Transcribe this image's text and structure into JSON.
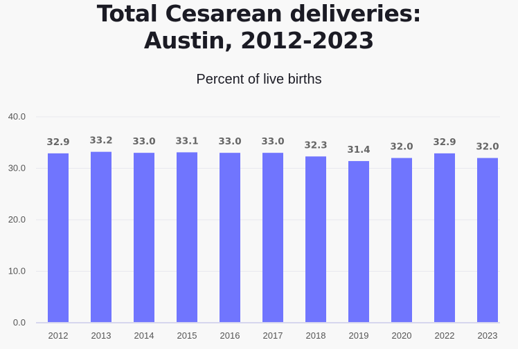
{
  "chart_data": {
    "type": "bar",
    "title_line1": "Total Cesarean deliveries:",
    "title_line2": "Austin, 2012-2023",
    "subtitle": "Percent of live births",
    "categories": [
      "2012",
      "2013",
      "2014",
      "2015",
      "2016",
      "2017",
      "2018",
      "2019",
      "2020",
      "2022",
      "2023"
    ],
    "values": [
      32.9,
      33.2,
      33.0,
      33.1,
      33.0,
      33.0,
      32.3,
      31.4,
      32.0,
      32.9,
      32.0
    ],
    "value_labels": [
      "32.9",
      "33.2",
      "33.0",
      "33.1",
      "33.0",
      "33.0",
      "32.3",
      "31.4",
      "32.0",
      "32.9",
      "32.0"
    ],
    "ylim": [
      0,
      40
    ],
    "yticks": [
      "0.0",
      "10.0",
      "20.0",
      "30.0",
      "40.0"
    ],
    "grid": true,
    "colors": {
      "bar": "#7075fe",
      "grid": "#e8e8ee",
      "baseline": "#d6d6ee",
      "label": "#666666"
    }
  }
}
